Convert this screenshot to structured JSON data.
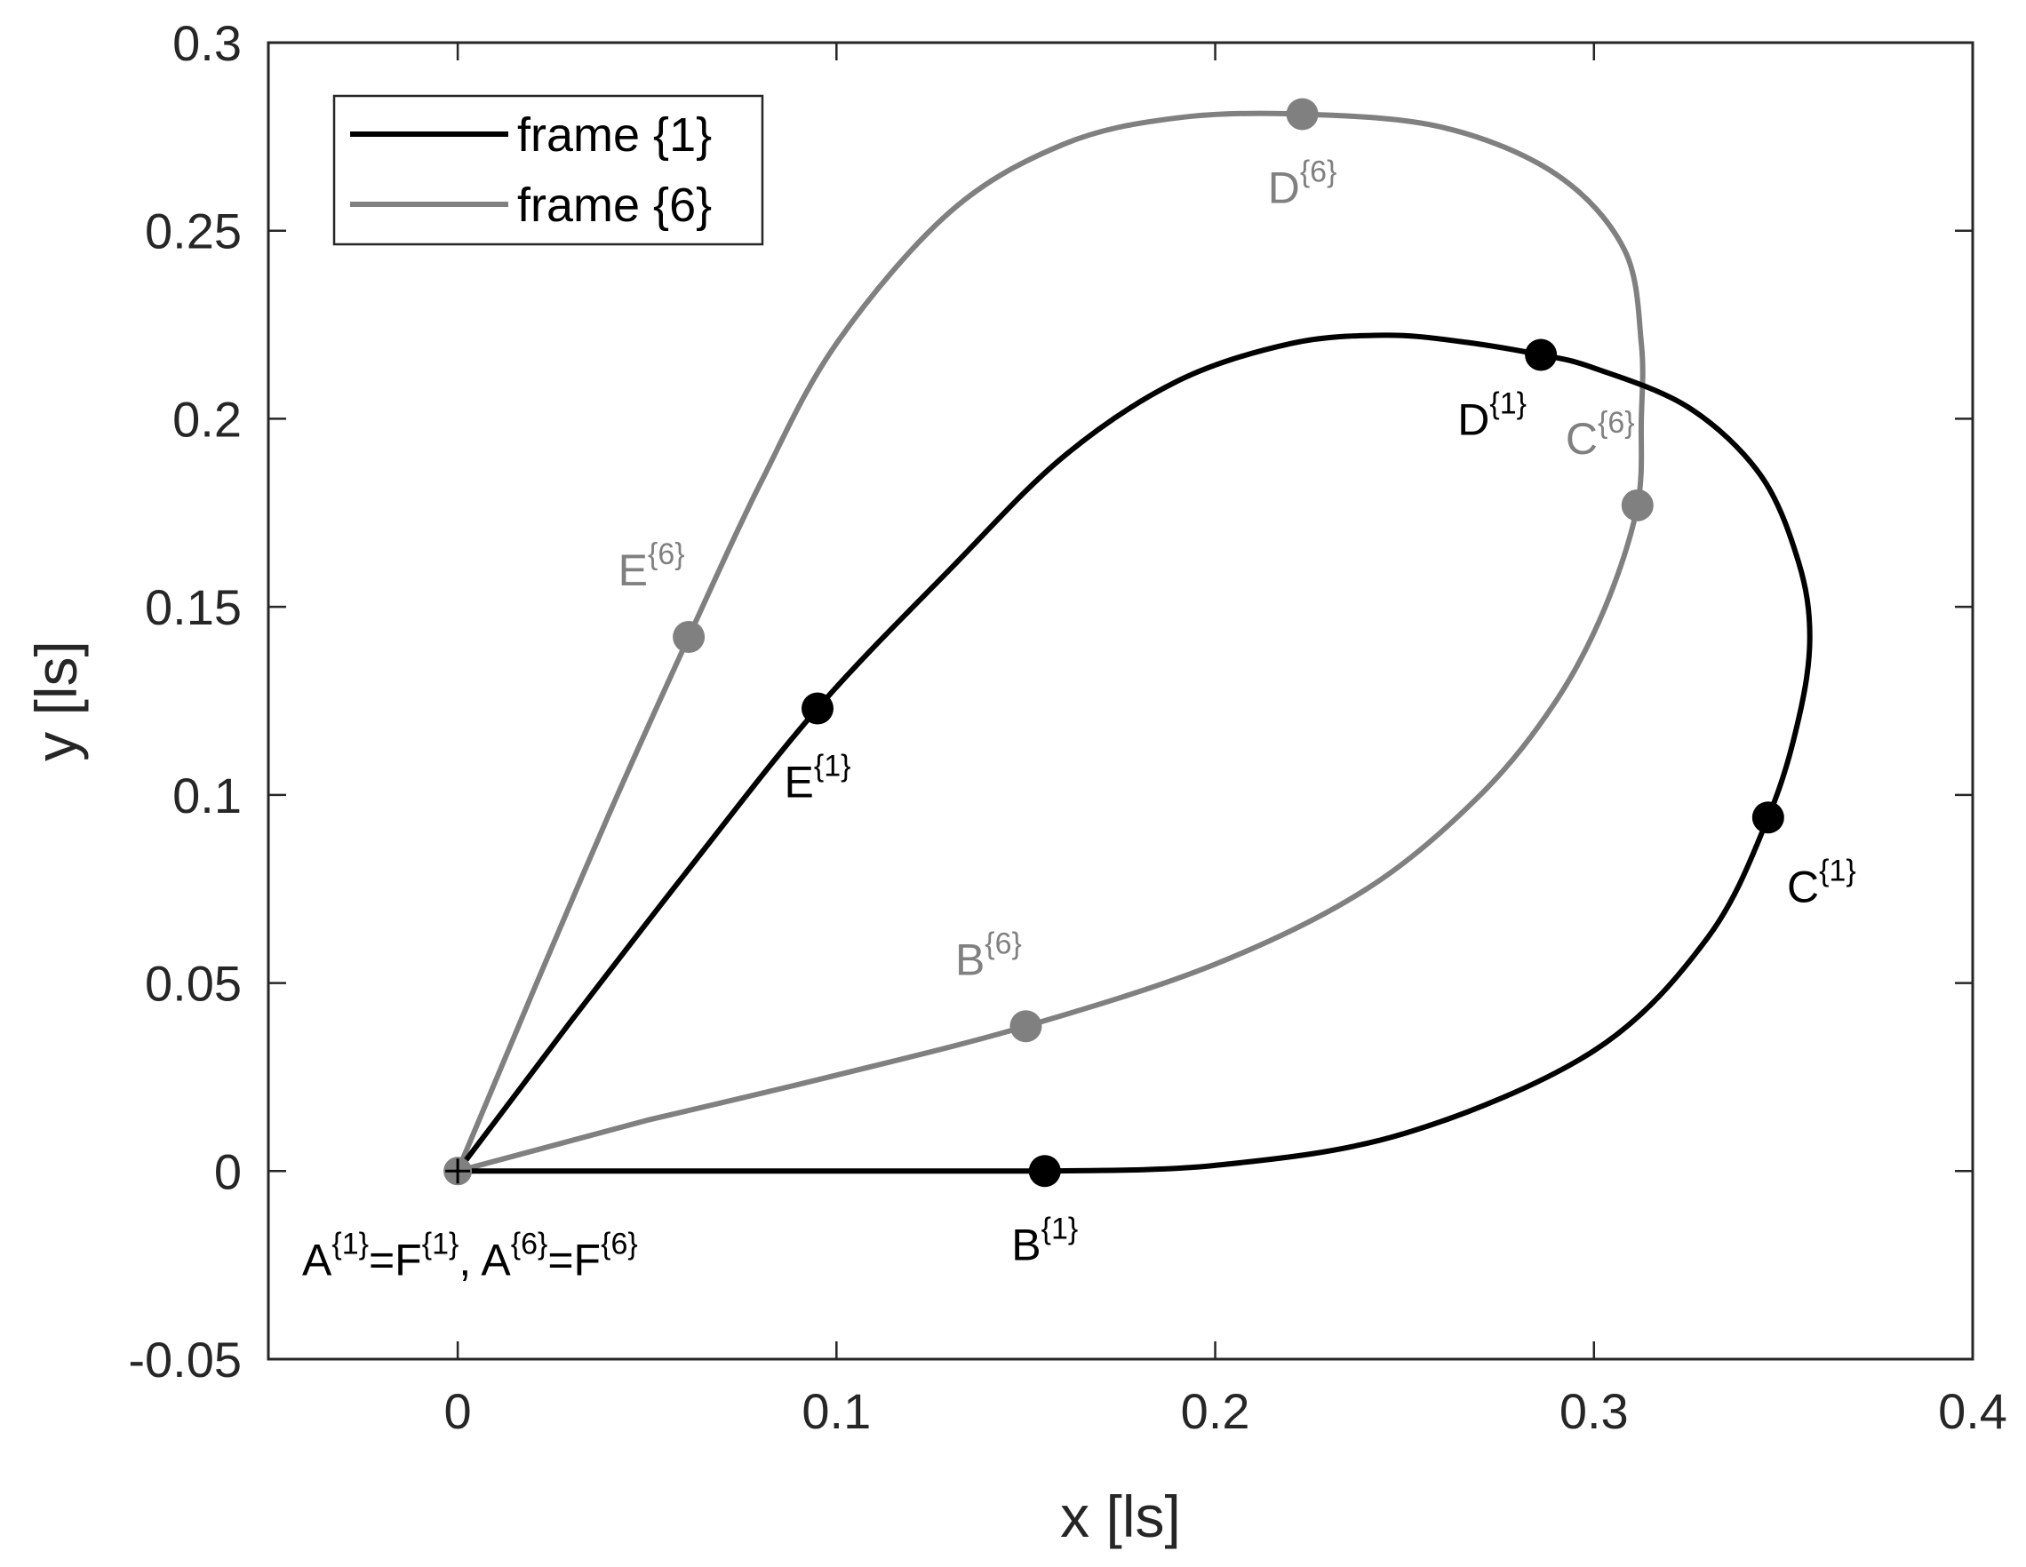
{
  "chart_data": {
    "type": "line",
    "xlabel": "x [ls]",
    "ylabel": "y [ls]",
    "xlim": [
      -0.05,
      0.4
    ],
    "ylim": [
      -0.05,
      0.3
    ],
    "x_ticks": [
      0,
      0.1,
      0.2,
      0.3,
      0.4
    ],
    "x_tick_labels": [
      "0",
      "0.1",
      "0.2",
      "0.3",
      "0.4"
    ],
    "y_ticks": [
      -0.05,
      0,
      0.05,
      0.1,
      0.15,
      0.2,
      0.25,
      0.3
    ],
    "y_tick_labels": [
      "-0.05",
      "0",
      "0.05",
      "0.1",
      "0.15",
      "0.2",
      "0.25",
      "0.3"
    ],
    "grid": false,
    "legend_position": "top-left",
    "origin_label": {
      "parts": [
        {
          "text": "A",
          "sup": false
        },
        {
          "text": "{1}",
          "sup": true
        },
        {
          "text": "=F",
          "sup": false
        },
        {
          "text": "{1}",
          "sup": true
        },
        {
          "text": ", A",
          "sup": false
        },
        {
          "text": "{6}",
          "sup": true
        },
        {
          "text": "=F",
          "sup": false
        },
        {
          "text": "{6}",
          "sup": true
        }
      ],
      "color": "#000000"
    },
    "series": [
      {
        "name": "frame {1}",
        "color": "#000000",
        "points": [
          [
            0,
            0
          ],
          [
            0.155,
            0
          ],
          [
            0.2,
            0.0015
          ],
          [
            0.25,
            0.01
          ],
          [
            0.3,
            0.032
          ],
          [
            0.33,
            0.062
          ],
          [
            0.346,
            0.094
          ],
          [
            0.354,
            0.12
          ],
          [
            0.357,
            0.142
          ],
          [
            0.354,
            0.162
          ],
          [
            0.344,
            0.185
          ],
          [
            0.325,
            0.203
          ],
          [
            0.3,
            0.2135
          ],
          [
            0.286,
            0.217
          ],
          [
            0.265,
            0.2205
          ],
          [
            0.245,
            0.2222
          ],
          [
            0.22,
            0.22
          ],
          [
            0.19,
            0.21
          ],
          [
            0.16,
            0.19
          ],
          [
            0.13,
            0.16
          ],
          [
            0.095,
            0.123
          ],
          [
            0.06,
            0.079
          ],
          [
            0.03,
            0.04
          ],
          [
            0,
            0
          ]
        ],
        "markers": [
          {
            "x": 0.155,
            "y": 0,
            "label": "B",
            "sup": "{1}",
            "label_pos": "below"
          },
          {
            "x": 0.346,
            "y": 0.094,
            "label": "C",
            "sup": "{1}",
            "label_pos": "below-right"
          },
          {
            "x": 0.286,
            "y": 0.217,
            "label": "D",
            "sup": "{1}",
            "label_pos": "below-left"
          },
          {
            "x": 0.095,
            "y": 0.123,
            "label": "E",
            "sup": "{1}",
            "label_pos": "below"
          }
        ]
      },
      {
        "name": "frame {6}",
        "color": "#808080",
        "points": [
          [
            0,
            0
          ],
          [
            0.05,
            0.0135
          ],
          [
            0.1,
            0.0255
          ],
          [
            0.15,
            0.0385
          ],
          [
            0.2,
            0.055
          ],
          [
            0.24,
            0.075
          ],
          [
            0.27,
            0.1
          ],
          [
            0.29,
            0.125
          ],
          [
            0.303,
            0.15
          ],
          [
            0.3115,
            0.177
          ],
          [
            0.3125,
            0.2
          ],
          [
            0.3125,
            0.22
          ],
          [
            0.308,
            0.245
          ],
          [
            0.29,
            0.265
          ],
          [
            0.26,
            0.2775
          ],
          [
            0.223,
            0.281
          ],
          [
            0.19,
            0.28
          ],
          [
            0.16,
            0.273
          ],
          [
            0.13,
            0.255
          ],
          [
            0.1,
            0.22
          ],
          [
            0.08,
            0.183
          ],
          [
            0.061,
            0.142
          ],
          [
            0.04,
            0.095
          ],
          [
            0.02,
            0.048
          ],
          [
            0,
            0
          ]
        ],
        "markers": [
          {
            "x": 0.15,
            "y": 0.0385,
            "label": "B",
            "sup": "{6}",
            "label_pos": "above-left"
          },
          {
            "x": 0.3115,
            "y": 0.177,
            "label": "C",
            "sup": "{6}",
            "label_pos": "above-left"
          },
          {
            "x": 0.223,
            "y": 0.281,
            "label": "D",
            "sup": "{6}",
            "label_pos": "below"
          },
          {
            "x": 0.061,
            "y": 0.142,
            "label": "E",
            "sup": "{6}",
            "label_pos": "above-left"
          }
        ]
      }
    ]
  }
}
